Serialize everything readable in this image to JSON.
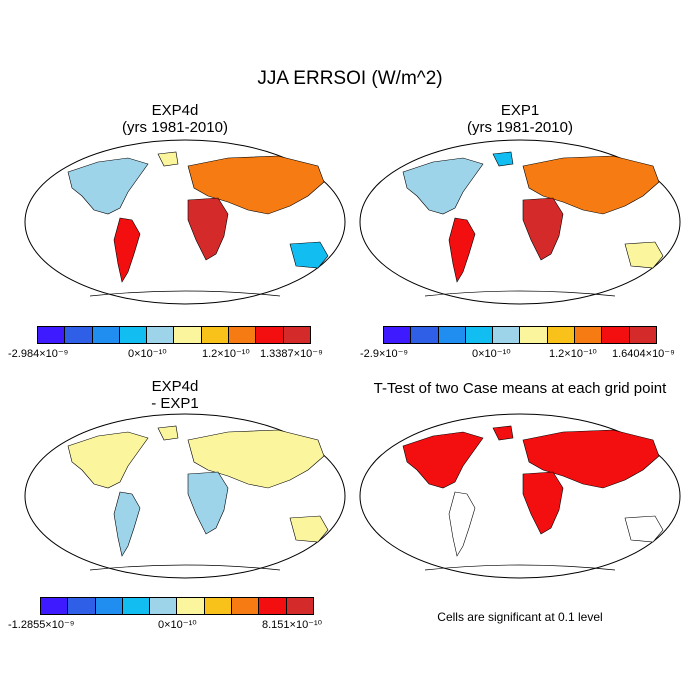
{
  "title": "JJA ERRSOI (W/m^2)",
  "colorbar_colors": [
    "#3d1aff",
    "#2e5fe6",
    "#1f8ef0",
    "#12bdf2",
    "#9dd4ea",
    "#fbf59e",
    "#f8c21a",
    "#f67b12",
    "#f30f0f",
    "#d42a2a"
  ],
  "panels": [
    {
      "title": "EXP4d",
      "subtitle": "(yrs 1981-2010)",
      "colorbar_labels": [
        "-2.984×10⁻⁹",
        "0×10⁻¹⁰",
        "1.2×10⁻¹⁰",
        "1.3387×10⁻⁹"
      ]
    },
    {
      "title": "EXP1",
      "subtitle": "(yrs 1981-2010)",
      "colorbar_labels": [
        "-2.9×10⁻⁹",
        "0×10⁻¹⁰",
        "1.2×10⁻¹⁰",
        "1.6404×10⁻⁹"
      ]
    },
    {
      "title": "EXP4d",
      "subtitle": "- EXP1",
      "colorbar_labels": [
        "-1.2855×10⁻⁹",
        "0×10⁻¹⁰",
        "8.151×10⁻¹⁰"
      ]
    },
    {
      "title": "T-Test of two Case means at each grid point",
      "note": "Cells are significant at 0.1 level"
    }
  ]
}
